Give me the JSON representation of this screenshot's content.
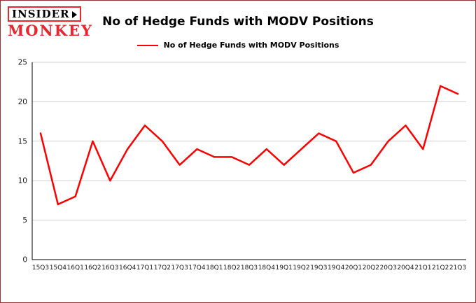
{
  "header": {
    "logo_line1": "INSIDER",
    "logo_line2": "MONKEY",
    "title": "No of Hedge Funds with MODV Positions"
  },
  "legend": {
    "label": "No of Hedge Funds with MODV Positions"
  },
  "colors": {
    "line": "#ff0000",
    "grid": "#d0d0d0",
    "axis": "#000000",
    "text": "#1a1a1a",
    "border": "#993333",
    "background": "#ffffff",
    "logo_red": "#e8262d"
  },
  "chart_data": {
    "type": "line",
    "title": "No of Hedge Funds with MODV Positions",
    "xlabel": "",
    "ylabel": "",
    "ylim": [
      0,
      25
    ],
    "yticks": [
      0,
      5,
      10,
      15,
      20,
      25
    ],
    "grid": true,
    "legend_position": "top",
    "categories": [
      "15Q3",
      "15Q4",
      "16Q1",
      "16Q2",
      "16Q3",
      "16Q4",
      "17Q1",
      "17Q2",
      "17Q3",
      "17Q4",
      "18Q1",
      "18Q2",
      "18Q3",
      "18Q4",
      "19Q1",
      "19Q2",
      "19Q3",
      "19Q4",
      "20Q1",
      "20Q2",
      "20Q3",
      "20Q4",
      "21Q1",
      "21Q2",
      "21Q3"
    ],
    "series": [
      {
        "name": "No of Hedge Funds with MODV Positions",
        "values": [
          16,
          7,
          8,
          15,
          10,
          14,
          17,
          15,
          12,
          14,
          13,
          13,
          12,
          14,
          12,
          14,
          16,
          15,
          11,
          12,
          15,
          17,
          14,
          22,
          21
        ]
      }
    ]
  }
}
